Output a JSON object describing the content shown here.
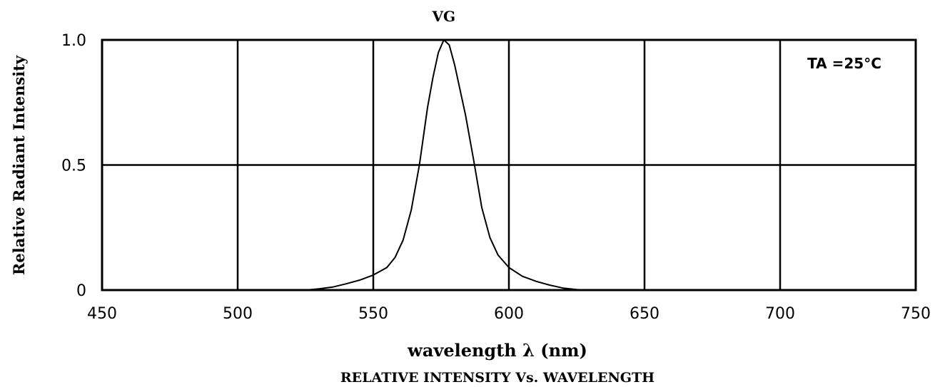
{
  "chart_data": {
    "type": "line",
    "title": "RELATIVE INTENSITY Vs. WAVELENGTH",
    "xlabel": "wavelength λ (nm)",
    "ylabel": "Relative Radiant Intensity",
    "xlim": [
      450,
      750
    ],
    "ylim": [
      0,
      1.0
    ],
    "x_ticks": [
      450,
      500,
      550,
      600,
      650,
      700,
      750
    ],
    "x_tick_labels": [
      "450",
      "500",
      "550",
      "600",
      "650",
      "700",
      "750"
    ],
    "y_ticks": [
      0,
      0.5,
      1.0
    ],
    "y_tick_labels": [
      "0",
      "0.5",
      "1.0"
    ],
    "grid": true,
    "annotation": "TA =25°C",
    "series": [
      {
        "name": "VG",
        "x": [
          525,
          530,
          535,
          540,
          545,
          550,
          555,
          558,
          561,
          564,
          567,
          570,
          572,
          574,
          576,
          578,
          580,
          582,
          584,
          587,
          590,
          593,
          596,
          600,
          605,
          610,
          615,
          620,
          625,
          628
        ],
        "y": [
          0.0,
          0.005,
          0.012,
          0.025,
          0.04,
          0.06,
          0.09,
          0.13,
          0.2,
          0.32,
          0.5,
          0.73,
          0.85,
          0.95,
          1.0,
          0.98,
          0.9,
          0.8,
          0.7,
          0.52,
          0.33,
          0.21,
          0.14,
          0.09,
          0.055,
          0.035,
          0.02,
          0.008,
          0.002,
          0.0
        ]
      }
    ]
  }
}
